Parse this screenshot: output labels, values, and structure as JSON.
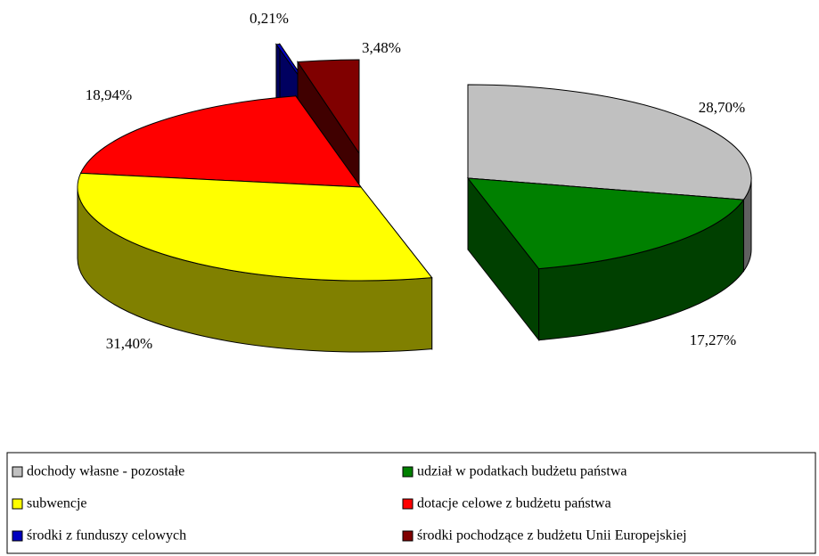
{
  "chart_data": {
    "type": "pie",
    "categories": [
      "dochody własne - pozostałe",
      "udział w podatkach budżetu państwa",
      "subwencje",
      "dotacje celowe z budżetu państwa",
      "środki z funduszy celowych",
      "środki pochodzące z budżetu Unii Europejskiej"
    ],
    "values": [
      28.7,
      17.27,
      31.4,
      18.94,
      0.21,
      3.48
    ],
    "value_labels": [
      "28,70%",
      "17,27%",
      "31,40%",
      "18,94%",
      "0,21%",
      "3,48%"
    ],
    "colors": [
      "#c0c0c0",
      "#008000",
      "#ffff00",
      "#ff0000",
      "#0000c0",
      "#800000"
    ],
    "legend": "bottom"
  }
}
